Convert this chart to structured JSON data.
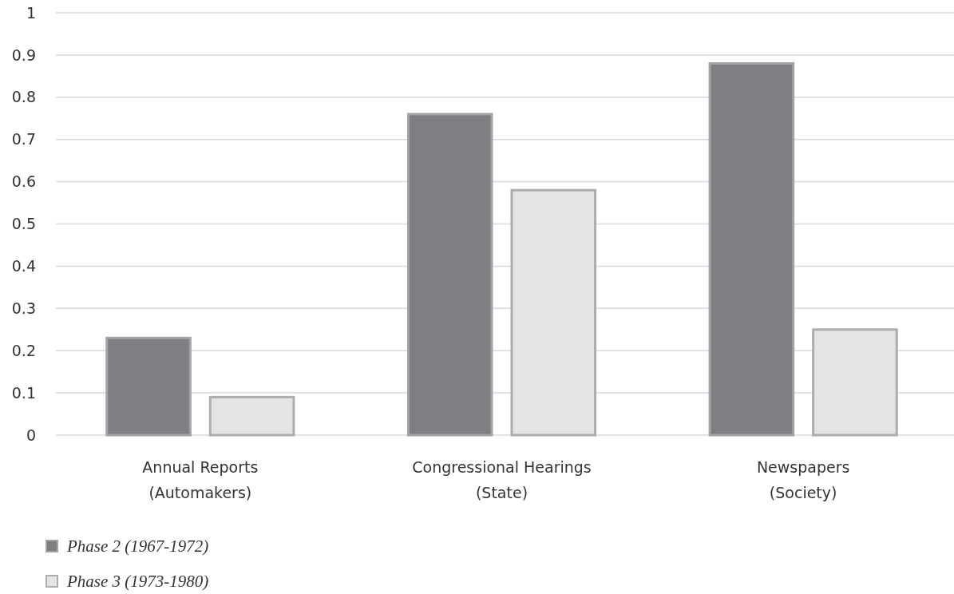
{
  "chart_data": {
    "type": "bar",
    "categories": [
      "Annual Reports\n(Automakers)",
      "Congressional Hearings\n(State)",
      "Newspapers\n(Society)"
    ],
    "series": [
      {
        "name": "Phase 2 (1967-1972)",
        "color": "#7f7f83",
        "values": [
          0.23,
          0.76,
          0.88
        ]
      },
      {
        "name": "Phase 3 (1973-1980)",
        "color": "#e4e4e6",
        "values": [
          0.09,
          0.58,
          0.25
        ]
      }
    ],
    "ylim": [
      0,
      1
    ],
    "yticks": [
      0,
      {
        "value": 0.1,
        "label": "0.1"
      },
      {
        "value": 0.2,
        "label": "0.2"
      },
      {
        "value": 0.3,
        "label": "0.3"
      },
      {
        "value": 0.4,
        "label": "0.4"
      },
      {
        "value": 0.5,
        "label": "0.5"
      },
      {
        "value": 0.6,
        "label": "0.6"
      },
      {
        "value": 0.7,
        "label": "0.7"
      },
      {
        "value": 0.8,
        "label": "0.8"
      },
      {
        "value": 0.9,
        "label": "0.9"
      },
      1
    ],
    "grid": "y",
    "legend": "bottom left"
  }
}
